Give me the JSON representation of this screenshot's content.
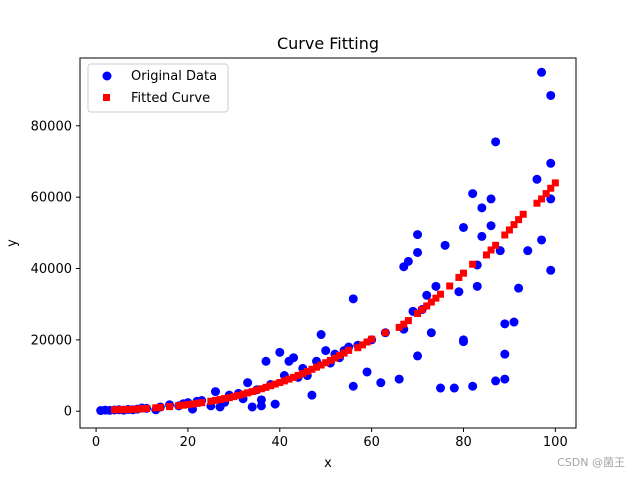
{
  "chart_data": {
    "type": "scatter",
    "title": "Curve Fitting",
    "xlabel": "x",
    "ylabel": "y",
    "xlim": [
      -3.5,
      104.5
    ],
    "ylim": [
      -4700,
      99000
    ],
    "xticks": [
      0,
      20,
      40,
      60,
      80,
      100
    ],
    "yticks": [
      0,
      20000,
      40000,
      60000,
      80000
    ],
    "ytick_labels": [
      "0",
      "20000",
      "40000",
      "60000",
      "80000"
    ],
    "xtick_labels": [
      "0",
      "20",
      "40",
      "60",
      "80",
      "100"
    ],
    "legend_position": "upper-left",
    "series": [
      {
        "name": "Original Data",
        "color": "#0000ff",
        "marker": "circle",
        "points": [
          [
            1,
            200
          ],
          [
            2,
            300
          ],
          [
            3,
            250
          ],
          [
            4,
            350
          ],
          [
            5,
            400
          ],
          [
            6,
            300
          ],
          [
            7,
            500
          ],
          [
            8,
            400
          ],
          [
            9,
            600
          ],
          [
            10,
            900
          ],
          [
            11,
            800
          ],
          [
            13,
            400
          ],
          [
            14,
            1200
          ],
          [
            16,
            1800
          ],
          [
            18,
            1500
          ],
          [
            19,
            2100
          ],
          [
            20,
            2400
          ],
          [
            21,
            600
          ],
          [
            22,
            2800
          ],
          [
            23,
            3000
          ],
          [
            25,
            1500
          ],
          [
            26,
            5500
          ],
          [
            27,
            1200
          ],
          [
            28,
            2500
          ],
          [
            29,
            4500
          ],
          [
            31,
            5000
          ],
          [
            32,
            3500
          ],
          [
            33,
            8000
          ],
          [
            34,
            1200
          ],
          [
            35,
            6000
          ],
          [
            36,
            3200
          ],
          [
            36,
            1500
          ],
          [
            37,
            14000
          ],
          [
            38,
            7500
          ],
          [
            39,
            2000
          ],
          [
            40,
            16500
          ],
          [
            41,
            10000
          ],
          [
            42,
            14000
          ],
          [
            43,
            15000
          ],
          [
            44,
            9500
          ],
          [
            45,
            12000
          ],
          [
            46,
            10000
          ],
          [
            47,
            4500
          ],
          [
            48,
            14000
          ],
          [
            49,
            21500
          ],
          [
            50,
            17000
          ],
          [
            51,
            13500
          ],
          [
            52,
            16000
          ],
          [
            53,
            15000
          ],
          [
            54,
            17000
          ],
          [
            55,
            18000
          ],
          [
            56,
            31500
          ],
          [
            56,
            7000
          ],
          [
            57,
            18500
          ],
          [
            59,
            11000
          ],
          [
            60,
            20000
          ],
          [
            62,
            8000
          ],
          [
            63,
            22000
          ],
          [
            66,
            9000
          ],
          [
            67,
            23000
          ],
          [
            67,
            40500
          ],
          [
            68,
            42000
          ],
          [
            69,
            28000
          ],
          [
            70,
            15500
          ],
          [
            70,
            44500
          ],
          [
            70,
            49500
          ],
          [
            71,
            28500
          ],
          [
            72,
            32500
          ],
          [
            73,
            22000
          ],
          [
            74,
            35000
          ],
          [
            75,
            6500
          ],
          [
            76,
            46500
          ],
          [
            78,
            6500
          ],
          [
            79,
            33500
          ],
          [
            80,
            20000
          ],
          [
            80,
            19500
          ],
          [
            80,
            51500
          ],
          [
            82,
            61000
          ],
          [
            82,
            7000
          ],
          [
            83,
            35000
          ],
          [
            83,
            41000
          ],
          [
            84,
            49000
          ],
          [
            84,
            57000
          ],
          [
            86,
            52000
          ],
          [
            86,
            59500
          ],
          [
            87,
            75500
          ],
          [
            87,
            8500
          ],
          [
            88,
            45000
          ],
          [
            89,
            24500
          ],
          [
            89,
            16000
          ],
          [
            89,
            9000
          ],
          [
            91,
            25000
          ],
          [
            92,
            34500
          ],
          [
            94,
            45000
          ],
          [
            96,
            65000
          ],
          [
            97,
            95000
          ],
          [
            97,
            48000
          ],
          [
            99,
            69500
          ],
          [
            99,
            88500
          ],
          [
            99,
            59500
          ],
          [
            99,
            39500
          ]
        ]
      },
      {
        "name": "Fitted Curve",
        "color": "#ff0000",
        "marker": "square",
        "points": [
          [
            4,
            400
          ],
          [
            5,
            420
          ],
          [
            6,
            450
          ],
          [
            7,
            480
          ],
          [
            8,
            520
          ],
          [
            9,
            600
          ],
          [
            10,
            700
          ],
          [
            11,
            780
          ],
          [
            13,
            950
          ],
          [
            14,
            1100
          ],
          [
            16,
            1300
          ],
          [
            18,
            1550
          ],
          [
            19,
            1700
          ],
          [
            20,
            1850
          ],
          [
            21,
            2000
          ],
          [
            22,
            2200
          ],
          [
            23,
            2400
          ],
          [
            25,
            2800
          ],
          [
            26,
            3050
          ],
          [
            27,
            3300
          ],
          [
            28,
            3550
          ],
          [
            29,
            3800
          ],
          [
            30,
            4100
          ],
          [
            31,
            4450
          ],
          [
            32,
            4800
          ],
          [
            33,
            5150
          ],
          [
            34,
            5500
          ],
          [
            35,
            5900
          ],
          [
            36,
            6300
          ],
          [
            37,
            6700
          ],
          [
            38,
            7150
          ],
          [
            39,
            7600
          ],
          [
            40,
            8050
          ],
          [
            41,
            8500
          ],
          [
            42,
            9000
          ],
          [
            43,
            9500
          ],
          [
            44,
            10050
          ],
          [
            45,
            10600
          ],
          [
            46,
            11150
          ],
          [
            47,
            11750
          ],
          [
            48,
            12350
          ],
          [
            49,
            12950
          ],
          [
            50,
            13600
          ],
          [
            51,
            14250
          ],
          [
            52,
            14900
          ],
          [
            53,
            15600
          ],
          [
            54,
            16300
          ],
          [
            55,
            17050
          ],
          [
            57,
            17800
          ],
          [
            58,
            18600
          ],
          [
            59,
            19400
          ],
          [
            60,
            20200
          ],
          [
            63,
            22000
          ],
          [
            66,
            23500
          ],
          [
            67,
            24400
          ],
          [
            68,
            25400
          ],
          [
            70,
            27400
          ],
          [
            71,
            28500
          ],
          [
            72,
            29500
          ],
          [
            73,
            30600
          ],
          [
            74,
            31700
          ],
          [
            75,
            32800
          ],
          [
            77,
            35100
          ],
          [
            79,
            37500
          ],
          [
            80,
            38700
          ],
          [
            82,
            41200
          ],
          [
            85,
            43800
          ],
          [
            86,
            45200
          ],
          [
            87,
            46500
          ],
          [
            89,
            49400
          ],
          [
            90,
            50800
          ],
          [
            91,
            52300
          ],
          [
            92,
            53700
          ],
          [
            93,
            55200
          ],
          [
            96,
            58300
          ],
          [
            97,
            59500
          ],
          [
            98,
            61000
          ],
          [
            99,
            62500
          ],
          [
            100,
            64000
          ]
        ]
      }
    ]
  },
  "watermark": "CSDN @菌王"
}
